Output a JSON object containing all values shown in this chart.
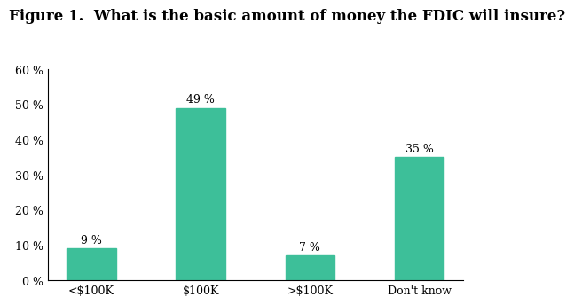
{
  "title": "Figure 1.  What is the basic amount of money the FDIC will insure?",
  "categories": [
    "<$100K",
    "$100K",
    ">$100K",
    "Don't know"
  ],
  "values": [
    9,
    49,
    7,
    35
  ],
  "bar_color": "#3dbf99",
  "bar_edge_color": "#3dbf99",
  "ylim": [
    0,
    60
  ],
  "yticks": [
    0,
    10,
    20,
    30,
    40,
    50,
    60
  ],
  "ytick_labels": [
    "0 %",
    "10 %",
    "20 %",
    "30 %",
    "40 %",
    "50 %",
    "60 %"
  ],
  "value_labels": [
    "9 %",
    "49 %",
    "7 %",
    "35 %"
  ],
  "background_color": "#ffffff",
  "title_fontsize": 12,
  "tick_fontsize": 9,
  "label_fontsize": 9,
  "bar_width": 0.45
}
